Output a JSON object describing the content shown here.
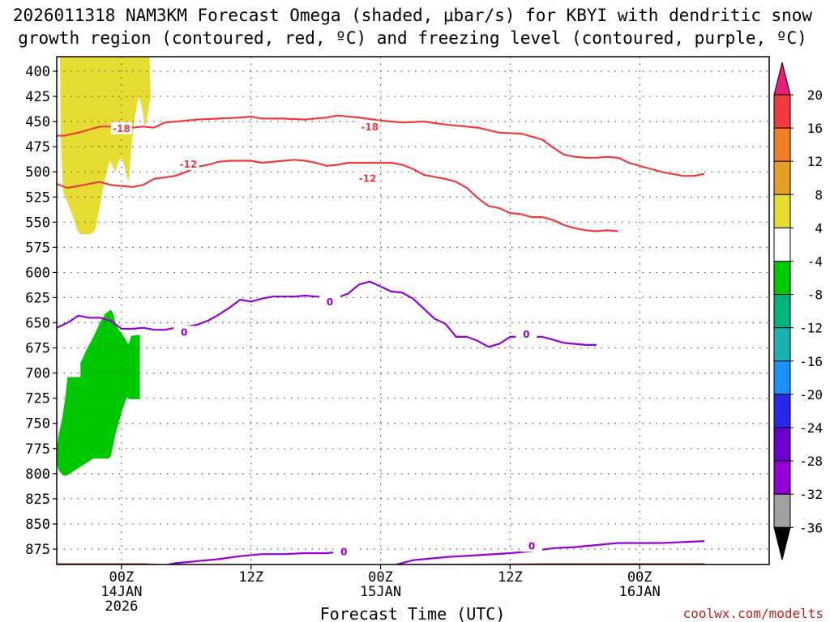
{
  "title_line1": "2026011318 NAM3KM Forecast Omega (shaded, μbar/s) for KBYI with dendritic snow",
  "title_line2": "growth region (contoured, red, ºC) and freezing level (contoured, purple, ºC)",
  "credit": "coolwx.com/modelts",
  "chart_data": {
    "type": "time-height cross section",
    "xlabel": "Forecast Time (UTC)",
    "x_hours": [
      -6,
      60
    ],
    "x_ticks": [
      {
        "hour": 0,
        "l1": "00Z",
        "l2": "14JAN",
        "l3": "2026"
      },
      {
        "hour": 12,
        "l1": "12Z",
        "l2": "",
        "l3": ""
      },
      {
        "hour": 24,
        "l1": "00Z",
        "l2": "15JAN",
        "l3": ""
      },
      {
        "hour": 36,
        "l1": "12Z",
        "l2": "",
        "l3": ""
      },
      {
        "hour": 48,
        "l1": "00Z",
        "l2": "16JAN",
        "l3": ""
      }
    ],
    "y_ticks": [
      400,
      425,
      450,
      475,
      500,
      525,
      550,
      575,
      600,
      625,
      650,
      675,
      700,
      725,
      750,
      775,
      800,
      825,
      850,
      875
    ],
    "grid": true,
    "contours": [
      {
        "label": "-18",
        "color": "#ee3b3b",
        "points": [
          [
            -6,
            464
          ],
          [
            -5.3,
            464
          ],
          [
            -4,
            461
          ],
          [
            -3,
            458
          ],
          [
            -2,
            455
          ],
          [
            -1,
            455
          ],
          [
            0,
            457
          ],
          [
            1,
            456
          ],
          [
            2,
            455
          ],
          [
            3,
            456
          ],
          [
            4,
            451
          ],
          [
            5,
            450
          ],
          [
            7,
            448
          ],
          [
            9,
            447
          ],
          [
            11,
            446
          ],
          [
            12,
            445
          ],
          [
            13,
            447
          ],
          [
            15,
            447
          ],
          [
            17,
            448
          ],
          [
            19,
            446
          ],
          [
            20,
            444
          ],
          [
            22,
            446
          ],
          [
            24,
            449
          ],
          [
            26,
            451
          ],
          [
            28,
            450
          ],
          [
            30,
            453
          ],
          [
            33,
            456
          ],
          [
            35,
            461
          ],
          [
            37,
            462
          ],
          [
            38,
            465
          ],
          [
            39,
            468
          ],
          [
            40,
            476
          ],
          [
            41,
            483
          ],
          [
            42,
            485
          ],
          [
            43,
            486
          ],
          [
            44,
            486
          ],
          [
            45,
            485
          ],
          [
            46,
            486
          ],
          [
            47,
            491
          ],
          [
            48,
            494
          ],
          [
            49,
            497
          ],
          [
            50,
            500
          ],
          [
            51,
            502
          ],
          [
            52,
            504
          ],
          [
            53,
            504
          ],
          [
            54,
            502
          ]
        ],
        "label_at": [
          [
            0,
            457
          ],
          [
            23,
            455.5
          ]
        ]
      },
      {
        "label": "-12",
        "color": "#ee3b3b",
        "points": [
          [
            -6,
            512
          ],
          [
            -5,
            516
          ],
          [
            -4,
            514
          ],
          [
            -3,
            512
          ],
          [
            -2,
            510
          ],
          [
            -1,
            513
          ],
          [
            0,
            514
          ],
          [
            1,
            515
          ],
          [
            2,
            513
          ],
          [
            3,
            507
          ],
          [
            5,
            504
          ],
          [
            6,
            500
          ],
          [
            7,
            495
          ],
          [
            8,
            493
          ],
          [
            9,
            490
          ],
          [
            10,
            489
          ],
          [
            11,
            489
          ],
          [
            12,
            489
          ],
          [
            13,
            491
          ],
          [
            15,
            489
          ],
          [
            16,
            488
          ],
          [
            17,
            489
          ],
          [
            18,
            491
          ],
          [
            19,
            494
          ],
          [
            20,
            493
          ],
          [
            21,
            491
          ],
          [
            23,
            491
          ],
          [
            25,
            491
          ],
          [
            26,
            493
          ],
          [
            27,
            497
          ],
          [
            28,
            503
          ],
          [
            29,
            505
          ],
          [
            30,
            507
          ],
          [
            31,
            510
          ],
          [
            32,
            516
          ],
          [
            33,
            526
          ],
          [
            34,
            534
          ],
          [
            35,
            536
          ],
          [
            36,
            541
          ],
          [
            37,
            542
          ],
          [
            38,
            545
          ],
          [
            39,
            545
          ],
          [
            40,
            548
          ],
          [
            41,
            553
          ],
          [
            42,
            556
          ],
          [
            43,
            558
          ],
          [
            44,
            559
          ],
          [
            45,
            558
          ],
          [
            46,
            559
          ]
        ],
        "label_at": [
          [
            6.2,
            492.5
          ],
          [
            22.8,
            506.5
          ]
        ]
      },
      {
        "label": "0",
        "color": "#9400d3",
        "points": [
          [
            -6,
            655
          ],
          [
            -5,
            650
          ],
          [
            -4,
            643
          ],
          [
            -3,
            645
          ],
          [
            -2,
            645
          ],
          [
            -1,
            648
          ],
          [
            0,
            656
          ],
          [
            1,
            656
          ],
          [
            2,
            655
          ],
          [
            3,
            657
          ],
          [
            4,
            657
          ],
          [
            5,
            655
          ],
          [
            6,
            654
          ],
          [
            7,
            652
          ],
          [
            8,
            648
          ],
          [
            9,
            642
          ],
          [
            10,
            635
          ],
          [
            11,
            627
          ],
          [
            12,
            629
          ],
          [
            13,
            626
          ],
          [
            14,
            624
          ],
          [
            16,
            624
          ],
          [
            17,
            623
          ],
          [
            18,
            624
          ],
          [
            19,
            624
          ],
          [
            20,
            625
          ],
          [
            21,
            621
          ],
          [
            22,
            612
          ],
          [
            23,
            609
          ],
          [
            24,
            614
          ],
          [
            25,
            619
          ],
          [
            26,
            620
          ],
          [
            27,
            626
          ],
          [
            28,
            636
          ],
          [
            29,
            646
          ],
          [
            30,
            651
          ],
          [
            31,
            664
          ],
          [
            32,
            664
          ],
          [
            33,
            668
          ],
          [
            34,
            674
          ],
          [
            35,
            671
          ],
          [
            36,
            664
          ],
          [
            37,
            664
          ],
          [
            38,
            664
          ],
          [
            39,
            664
          ],
          [
            40,
            667
          ],
          [
            41,
            670
          ],
          [
            42,
            671
          ],
          [
            43,
            672
          ],
          [
            44,
            672
          ]
        ],
        "label_at": [
          [
            5.8,
            659.5
          ],
          [
            19.3,
            629.5
          ],
          [
            37.5,
            661.5
          ]
        ]
      },
      {
        "label": "0",
        "color": "#9400d3",
        "points": [
          [
            3,
            893
          ],
          [
            5,
            889
          ],
          [
            7,
            887
          ],
          [
            9,
            885
          ],
          [
            11,
            882
          ],
          [
            13,
            880
          ],
          [
            15,
            880
          ],
          [
            17,
            879
          ],
          [
            19,
            879
          ],
          [
            20,
            878
          ]
        ],
        "label_at": [
          [
            20.6,
            878
          ]
        ]
      },
      {
        "label": "0",
        "color": "#9400d3",
        "points": [
          [
            24.5,
            893
          ],
          [
            27,
            886
          ],
          [
            30,
            883
          ],
          [
            33,
            881
          ],
          [
            36,
            879
          ],
          [
            38,
            877
          ],
          [
            40,
            874
          ],
          [
            42,
            873
          ],
          [
            44,
            871
          ],
          [
            46,
            869
          ],
          [
            48,
            869
          ],
          [
            50,
            869
          ],
          [
            52,
            868
          ],
          [
            54,
            867
          ]
        ],
        "label_at": [
          [
            38,
            872
          ]
        ]
      }
    ],
    "shaded_regions": [
      {
        "range": "4 to 8",
        "color": "#e6dc32",
        "points": [
          [
            -5.7,
            384
          ],
          [
            -5.3,
            384
          ],
          [
            -4.2,
            384
          ],
          [
            -4.1,
            384
          ],
          [
            -4,
            384
          ],
          [
            -3,
            384
          ],
          [
            -2,
            384
          ],
          [
            -1,
            384
          ],
          [
            0,
            384
          ],
          [
            1,
            384
          ],
          [
            1.2,
            384
          ],
          [
            2,
            384
          ],
          [
            2.3,
            384
          ],
          [
            2.5,
            384
          ],
          [
            2.6,
            384
          ],
          [
            2.7,
            425
          ],
          [
            2.4,
            445
          ],
          [
            2.2,
            455
          ],
          [
            2.1,
            452
          ],
          [
            2.0,
            442
          ],
          [
            1.8,
            432
          ],
          [
            1.6,
            425
          ],
          [
            1.2,
            447
          ],
          [
            0.9,
            478
          ],
          [
            0.7,
            505
          ],
          [
            0.6,
            510
          ],
          [
            0.3,
            495
          ],
          [
            0,
            486
          ],
          [
            -0.2,
            488
          ],
          [
            -0.6,
            500
          ],
          [
            -0.8,
            495
          ],
          [
            -1.1,
            489
          ],
          [
            -1.6,
            510
          ],
          [
            -1.9,
            528
          ],
          [
            -2.3,
            551
          ],
          [
            -2.5,
            559
          ],
          [
            -2.9,
            562
          ],
          [
            -3.8,
            562
          ],
          [
            -4.1,
            558
          ],
          [
            -4.6,
            541
          ],
          [
            -5.4,
            520
          ],
          [
            -5.6,
            480
          ]
        ]
      },
      {
        "range": "-8 to -4",
        "color": "#00c800",
        "points": [
          [
            -6,
            775
          ],
          [
            -5.8,
            760
          ],
          [
            -5.5,
            745
          ],
          [
            -5.2,
            724
          ],
          [
            -5.0,
            704
          ],
          [
            -4.6,
            704
          ],
          [
            -3.8,
            704
          ],
          [
            -3.8,
            690
          ],
          [
            -3.2,
            676
          ],
          [
            -2.6,
            664
          ],
          [
            -2.0,
            650
          ],
          [
            -1.5,
            641
          ],
          [
            -1.0,
            637
          ],
          [
            -0.8,
            640
          ],
          [
            -0.5,
            653
          ],
          [
            0.1,
            662
          ],
          [
            0.3,
            665
          ],
          [
            0.4,
            667
          ],
          [
            0.6,
            671
          ],
          [
            0.7,
            670
          ],
          [
            0.9,
            663
          ],
          [
            1.7,
            662
          ],
          [
            1.7,
            726
          ],
          [
            0.7,
            726
          ],
          [
            0.5,
            724
          ],
          [
            0.1,
            736
          ],
          [
            -0.5,
            758
          ],
          [
            -1.0,
            783
          ],
          [
            -1.2,
            785
          ],
          [
            -1.6,
            785
          ],
          [
            -2.6,
            785
          ],
          [
            -3.5,
            791
          ],
          [
            -4.8,
            800
          ],
          [
            -5.1,
            802
          ],
          [
            -5.4,
            802
          ],
          [
            -5.8,
            797
          ],
          [
            -6,
            790
          ]
        ]
      },
      {
        "range": "ground",
        "color": "#a0522d",
        "points": [
          [
            -6,
            889
          ],
          [
            0,
            889
          ],
          [
            2,
            889
          ],
          [
            4,
            890
          ],
          [
            16,
            890
          ],
          [
            26,
            890
          ],
          [
            40,
            889
          ],
          [
            54,
            889
          ],
          [
            54,
            893
          ],
          [
            -6,
            893
          ]
        ]
      }
    ],
    "colorbar": {
      "levels": [
        20,
        16,
        12,
        8,
        4,
        -4,
        -8,
        -12,
        -16,
        -20,
        -24,
        -28,
        -32,
        -36
      ],
      "colors": [
        "#e61e78",
        "#ee3b3b",
        "#f07f28",
        "#e6a028",
        "#e6dc32",
        "#ffffff",
        "#00c800",
        "#00b27c",
        "#1cb2b2",
        "#1e90ff",
        "#2828e6",
        "#6a00cc",
        "#9400d3",
        "#a0a0a0",
        "#000000"
      ]
    }
  }
}
